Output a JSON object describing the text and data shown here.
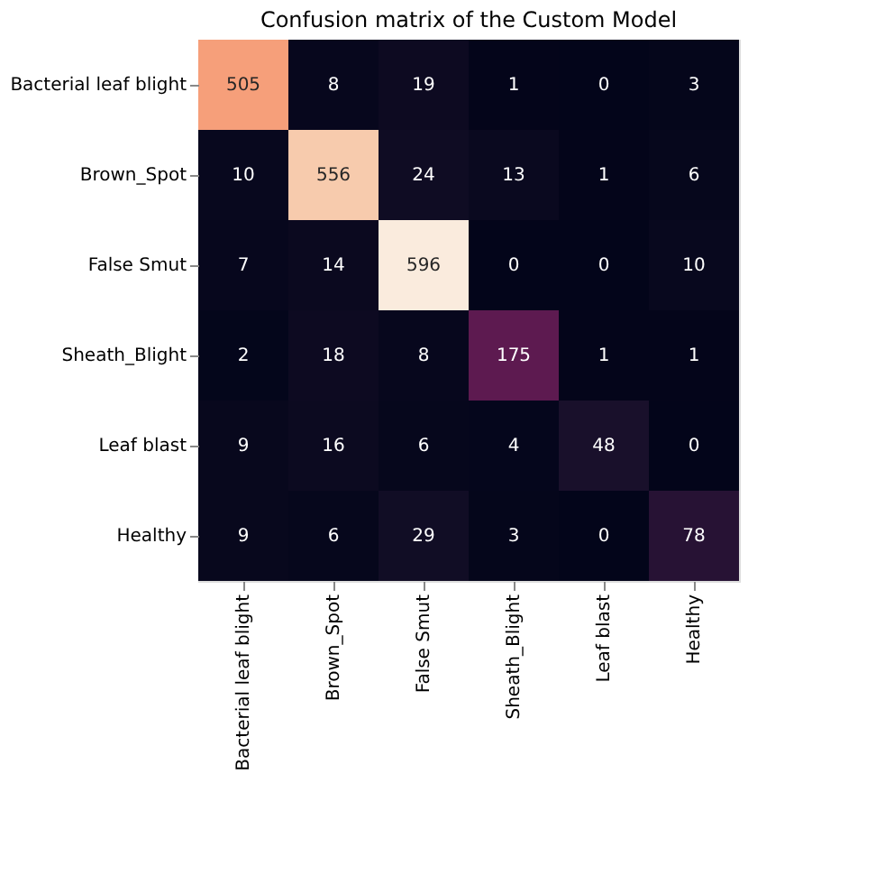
{
  "chart_data": {
    "type": "heatmap",
    "title": "Confusion matrix of the Custom Model",
    "categories": [
      "Bacterial leaf blight",
      "Brown_Spot",
      "False Smut",
      "Sheath_Blight",
      "Leaf blast",
      "Healthy"
    ],
    "y_categories": [
      "Bacterial leaf blight",
      "Brown_Spot",
      "False Smut",
      "Sheath_Blight",
      "Leaf blast",
      "Healthy"
    ],
    "cells": [
      [
        505,
        8,
        19,
        1,
        0,
        3
      ],
      [
        10,
        556,
        24,
        13,
        1,
        6
      ],
      [
        7,
        14,
        596,
        0,
        0,
        10
      ],
      [
        2,
        18,
        8,
        175,
        1,
        1
      ],
      [
        9,
        16,
        6,
        4,
        48,
        0
      ],
      [
        9,
        6,
        29,
        3,
        0,
        78
      ]
    ],
    "data_labels": true,
    "legend": false
  }
}
